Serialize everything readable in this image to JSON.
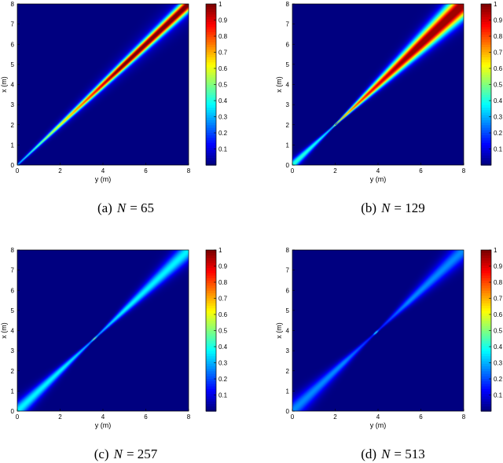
{
  "chart_data": [
    {
      "type": "heatmap",
      "caption_label": "(a)",
      "caption_var": "N",
      "caption_value": "= 65",
      "N": 65,
      "xlabel": "y (m)",
      "ylabel": "x (m)",
      "xlim": [
        0,
        8
      ],
      "ylim": [
        0,
        8
      ],
      "x_ticks": [
        "0",
        "2",
        "4",
        "6",
        "8"
      ],
      "y_ticks": [
        "0",
        "1",
        "2",
        "3",
        "4",
        "5",
        "6",
        "7",
        "8"
      ],
      "colorbar_ticks": [
        "0.1",
        "0.2",
        "0.3",
        "0.4",
        "0.5",
        "0.6",
        "0.7",
        "0.8",
        "0.9",
        "1"
      ],
      "colorbar_range": [
        0,
        1
      ],
      "focus_point": [
        0,
        0
      ],
      "peak": 1.0
    },
    {
      "type": "heatmap",
      "caption_label": "(b)",
      "caption_var": "N",
      "caption_value": "= 129",
      "N": 129,
      "xlabel": "y (m)",
      "ylabel": "x (m)",
      "xlim": [
        0,
        8
      ],
      "ylim": [
        0,
        8
      ],
      "x_ticks": [
        "0",
        "2",
        "4",
        "6",
        "8"
      ],
      "y_ticks": [
        "0",
        "1",
        "2",
        "3",
        "4",
        "5",
        "6",
        "7",
        "8"
      ],
      "colorbar_ticks": [
        "0.1",
        "0.2",
        "0.3",
        "0.4",
        "0.5",
        "0.6",
        "0.7",
        "0.8",
        "0.9",
        "1"
      ],
      "colorbar_range": [
        0,
        1
      ],
      "focus_point": [
        2,
        2
      ],
      "peak": 1.0
    },
    {
      "type": "heatmap",
      "caption_label": "(c)",
      "caption_var": "N",
      "caption_value": "= 257",
      "N": 257,
      "xlabel": "y (m)",
      "ylabel": "x (m)",
      "xlim": [
        0,
        8
      ],
      "ylim": [
        0,
        8
      ],
      "x_ticks": [
        "0",
        "2",
        "4",
        "6",
        "8"
      ],
      "y_ticks": [
        "0",
        "1",
        "2",
        "3",
        "4",
        "5",
        "6",
        "7",
        "8"
      ],
      "colorbar_ticks": [
        "0.1",
        "0.2",
        "0.3",
        "0.4",
        "0.5",
        "0.6",
        "0.7",
        "0.8",
        "0.9",
        "1"
      ],
      "colorbar_range": [
        0,
        1
      ],
      "focus_point": [
        3.6,
        3.6
      ],
      "peak": 0.4
    },
    {
      "type": "heatmap",
      "caption_label": "(d)",
      "caption_var": "N",
      "caption_value": "= 513",
      "N": 513,
      "xlabel": "y (m)",
      "ylabel": "x (m)",
      "xlim": [
        0,
        8
      ],
      "ylim": [
        0,
        8
      ],
      "x_ticks": [
        "0",
        "2",
        "4",
        "6",
        "8"
      ],
      "y_ticks": [
        "0",
        "1",
        "2",
        "3",
        "4",
        "5",
        "6",
        "7",
        "8"
      ],
      "colorbar_ticks": [
        "0.1",
        "0.2",
        "0.3",
        "0.4",
        "0.5",
        "0.6",
        "0.7",
        "0.8",
        "0.9",
        "1"
      ],
      "colorbar_range": [
        0,
        1
      ],
      "focus_point": [
        3.9,
        3.9
      ],
      "peak": 0.2
    }
  ]
}
